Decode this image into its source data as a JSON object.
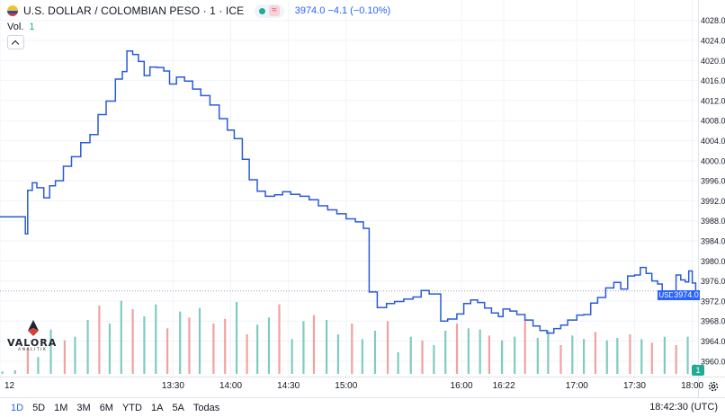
{
  "header": {
    "title": "U.S. DOLLAR / COLOMBIAN PESO · 1 · ICE",
    "status_badge": "≈",
    "quote": "3974.0  −4.1  (−0.10%)"
  },
  "volume_legend": {
    "label": "Vol.",
    "value": "1"
  },
  "logo": {
    "name": "VALORA",
    "subtitle": "ANALITIK"
  },
  "timeframes": [
    "1D",
    "5D",
    "1M",
    "3M",
    "6M",
    "YTD",
    "1A",
    "5A",
    "Todas"
  ],
  "active_timeframe": "1D",
  "clock": "18:42:30 (UTC)",
  "colors": {
    "line": "#2a5bd7",
    "up": "#7fcbc0",
    "down": "#f2a1a1",
    "accent": "#2962ff",
    "grid": "#f0f3fa"
  },
  "chart_data": {
    "type": "line",
    "title": "U.S. DOLLAR / COLOMBIAN PESO · 1 · ICE",
    "symbol": "USDCOP",
    "last_price": 3974.0,
    "last_price_label": "3974.0",
    "volume_last_label": "1",
    "y_ticks": [
      3960,
      3964,
      3968,
      3972,
      3976,
      3980,
      3984,
      3988,
      3992,
      3996,
      4000,
      4004,
      4008,
      4012,
      4016,
      4020,
      4024,
      4028
    ],
    "y_tick_labels": [
      "3960.0",
      "3964.0",
      "3968.0",
      "3972.0",
      "3976.0",
      "3980.0",
      "3984.0",
      "3988.0",
      "3992.0",
      "3996.0",
      "4000.0",
      "4004.0",
      "4008.0",
      "4012.0",
      "4016.0",
      "4020.0",
      "4024.0",
      "4028.0"
    ],
    "ylim": [
      3958,
      4031
    ],
    "x_ticks": [
      {
        "t": 12.0,
        "label": "12"
      },
      {
        "t": 13.5,
        "label": "13:30"
      },
      {
        "t": 14.0,
        "label": "14:00"
      },
      {
        "t": 14.5,
        "label": "14:30"
      },
      {
        "t": 15.0,
        "label": "15:00"
      },
      {
        "t": 16.0,
        "label": "16:00"
      },
      {
        "t": 16.367,
        "label": "16:22"
      },
      {
        "t": 17.0,
        "label": "17:00"
      },
      {
        "t": 17.5,
        "label": "17:30"
      },
      {
        "t": 18.0,
        "label": "18:00"
      }
    ],
    "xlim": [
      12.0,
      18.05
    ],
    "series": [
      {
        "name": "USDCOP",
        "points": [
          [
            12.0,
            3988.8
          ],
          [
            12.2,
            3988.8
          ],
          [
            12.22,
            3985.4
          ],
          [
            12.24,
            3994.1
          ],
          [
            12.28,
            3995.6
          ],
          [
            12.32,
            3994.6
          ],
          [
            12.38,
            3992.6
          ],
          [
            12.43,
            3995.0
          ],
          [
            12.48,
            3996.0
          ],
          [
            12.55,
            3998.9
          ],
          [
            12.62,
            4000.8
          ],
          [
            12.7,
            4003.6
          ],
          [
            12.78,
            4005.2
          ],
          [
            12.85,
            4009.2
          ],
          [
            12.92,
            4011.9
          ],
          [
            13.0,
            4016.3
          ],
          [
            13.06,
            4017.8
          ],
          [
            13.1,
            4021.9
          ],
          [
            13.15,
            4021.2
          ],
          [
            13.2,
            4019.8
          ],
          [
            13.25,
            4017.0
          ],
          [
            13.3,
            4018.7
          ],
          [
            13.36,
            4018.6
          ],
          [
            13.42,
            4017.9
          ],
          [
            13.47,
            4015.3
          ],
          [
            13.53,
            4016.7
          ],
          [
            13.6,
            4015.9
          ],
          [
            13.67,
            4014.3
          ],
          [
            13.74,
            4013.0
          ],
          [
            13.82,
            4011.1
          ],
          [
            13.9,
            4008.4
          ],
          [
            13.97,
            4006.1
          ],
          [
            14.03,
            4004.4
          ],
          [
            14.1,
            4000.3
          ],
          [
            14.16,
            3996.2
          ],
          [
            14.23,
            3993.9
          ],
          [
            14.3,
            3992.9
          ],
          [
            14.38,
            3993.2
          ],
          [
            14.45,
            3993.8
          ],
          [
            14.52,
            3993.3
          ],
          [
            14.6,
            3992.9
          ],
          [
            14.68,
            3992.2
          ],
          [
            14.76,
            3991.0
          ],
          [
            14.84,
            3990.2
          ],
          [
            14.92,
            3989.4
          ],
          [
            15.0,
            3988.4
          ],
          [
            15.08,
            3987.8
          ],
          [
            15.15,
            3986.5
          ],
          [
            15.2,
            3973.8
          ],
          [
            15.27,
            3970.7
          ],
          [
            15.35,
            3971.5
          ],
          [
            15.42,
            3971.9
          ],
          [
            15.5,
            3972.4
          ],
          [
            15.58,
            3972.8
          ],
          [
            15.65,
            3974.1
          ],
          [
            15.72,
            3973.4
          ],
          [
            15.82,
            3968.0
          ],
          [
            15.88,
            3968.4
          ],
          [
            15.96,
            3969.4
          ],
          [
            16.02,
            3971.5
          ],
          [
            16.08,
            3972.2
          ],
          [
            16.14,
            3971.7
          ],
          [
            16.2,
            3970.6
          ],
          [
            16.26,
            3969.6
          ],
          [
            16.32,
            3968.9
          ],
          [
            16.36,
            3970.4
          ],
          [
            16.42,
            3970.0
          ],
          [
            16.48,
            3969.3
          ],
          [
            16.55,
            3968.2
          ],
          [
            16.62,
            3967.0
          ],
          [
            16.68,
            3966.1
          ],
          [
            16.74,
            3965.6
          ],
          [
            16.8,
            3966.5
          ],
          [
            16.86,
            3967.2
          ],
          [
            16.92,
            3968.2
          ],
          [
            17.0,
            3969.2
          ],
          [
            17.06,
            3969.3
          ],
          [
            17.12,
            3971.6
          ],
          [
            17.18,
            3972.7
          ],
          [
            17.25,
            3974.6
          ],
          [
            17.32,
            3975.7
          ],
          [
            17.38,
            3974.4
          ],
          [
            17.44,
            3977.0
          ],
          [
            17.5,
            3977.2
          ],
          [
            17.55,
            3978.7
          ],
          [
            17.6,
            3977.5
          ],
          [
            17.65,
            3976.0
          ],
          [
            17.7,
            3975.4
          ],
          [
            17.74,
            3974.0
          ],
          [
            17.8,
            3973.6
          ],
          [
            17.86,
            3977.2
          ],
          [
            17.9,
            3976.2
          ],
          [
            17.94,
            3975.8
          ],
          [
            17.97,
            3978.0
          ],
          [
            18.0,
            3975.6
          ],
          [
            18.03,
            3974.0
          ]
        ]
      }
    ],
    "volume": [
      [
        12.02,
        2,
        1
      ],
      [
        12.13,
        3,
        1
      ],
      [
        12.24,
        22,
        0
      ],
      [
        12.33,
        14,
        1
      ],
      [
        12.44,
        37,
        1
      ],
      [
        12.56,
        28,
        0
      ],
      [
        12.65,
        31,
        1
      ],
      [
        12.76,
        45,
        1
      ],
      [
        12.86,
        57,
        0
      ],
      [
        12.95,
        42,
        1
      ],
      [
        13.05,
        61,
        1
      ],
      [
        13.15,
        54,
        0
      ],
      [
        13.25,
        48,
        1
      ],
      [
        13.35,
        58,
        1
      ],
      [
        13.45,
        38,
        0
      ],
      [
        13.56,
        52,
        1
      ],
      [
        13.64,
        47,
        0
      ],
      [
        13.73,
        55,
        1
      ],
      [
        13.85,
        42,
        0
      ],
      [
        13.95,
        46,
        0
      ],
      [
        14.05,
        60,
        1
      ],
      [
        14.14,
        33,
        0
      ],
      [
        14.23,
        41,
        1
      ],
      [
        14.33,
        47,
        1
      ],
      [
        14.42,
        58,
        0
      ],
      [
        14.53,
        29,
        1
      ],
      [
        14.63,
        44,
        1
      ],
      [
        14.72,
        49,
        0
      ],
      [
        14.83,
        45,
        1
      ],
      [
        14.93,
        33,
        1
      ],
      [
        15.05,
        42,
        0
      ],
      [
        15.14,
        29,
        1
      ],
      [
        15.25,
        36,
        1
      ],
      [
        15.36,
        44,
        0
      ],
      [
        15.45,
        18,
        1
      ],
      [
        15.56,
        31,
        1
      ],
      [
        15.66,
        28,
        0
      ],
      [
        15.76,
        24,
        1
      ],
      [
        15.86,
        36,
        1
      ],
      [
        15.96,
        42,
        0
      ],
      [
        16.06,
        38,
        1
      ],
      [
        16.16,
        37,
        1
      ],
      [
        16.24,
        32,
        0
      ],
      [
        16.35,
        28,
        1
      ],
      [
        16.46,
        31,
        1
      ],
      [
        16.55,
        45,
        0
      ],
      [
        16.66,
        30,
        1
      ],
      [
        16.75,
        36,
        1
      ],
      [
        16.86,
        24,
        0
      ],
      [
        16.96,
        32,
        1
      ],
      [
        17.06,
        29,
        1
      ],
      [
        17.16,
        35,
        0
      ],
      [
        17.26,
        28,
        1
      ],
      [
        17.35,
        30,
        1
      ],
      [
        17.46,
        33,
        0
      ],
      [
        17.56,
        29,
        1
      ],
      [
        17.65,
        26,
        0
      ],
      [
        17.76,
        31,
        1
      ],
      [
        17.86,
        24,
        0
      ],
      [
        17.96,
        31,
        1
      ],
      [
        18.02,
        8,
        1
      ]
    ],
    "volume_max": 75
  }
}
